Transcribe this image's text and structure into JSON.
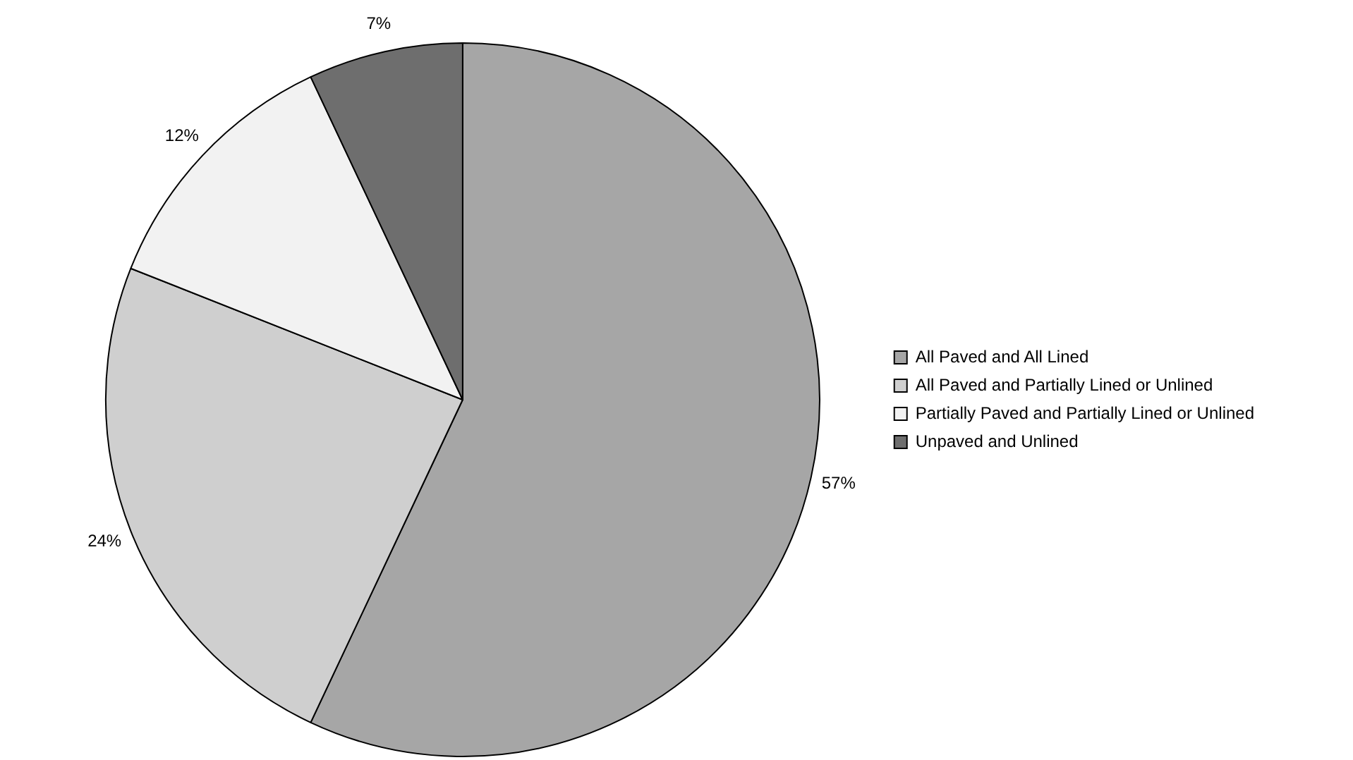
{
  "chart_data": {
    "type": "pie",
    "categories": [
      "All Paved and All Lined",
      "All Paved and Partially Lined or Unlined",
      "Partially Paved and Partially Lined or Unlined",
      "Unpaved and Unlined"
    ],
    "values": [
      57,
      24,
      12,
      7
    ],
    "value_labels": [
      "57%",
      "24%",
      "12%",
      "7%"
    ],
    "colors": [
      "#a6a6a6",
      "#cfcfcf",
      "#f2f2f2",
      "#6e6e6e"
    ],
    "legend": "right"
  }
}
